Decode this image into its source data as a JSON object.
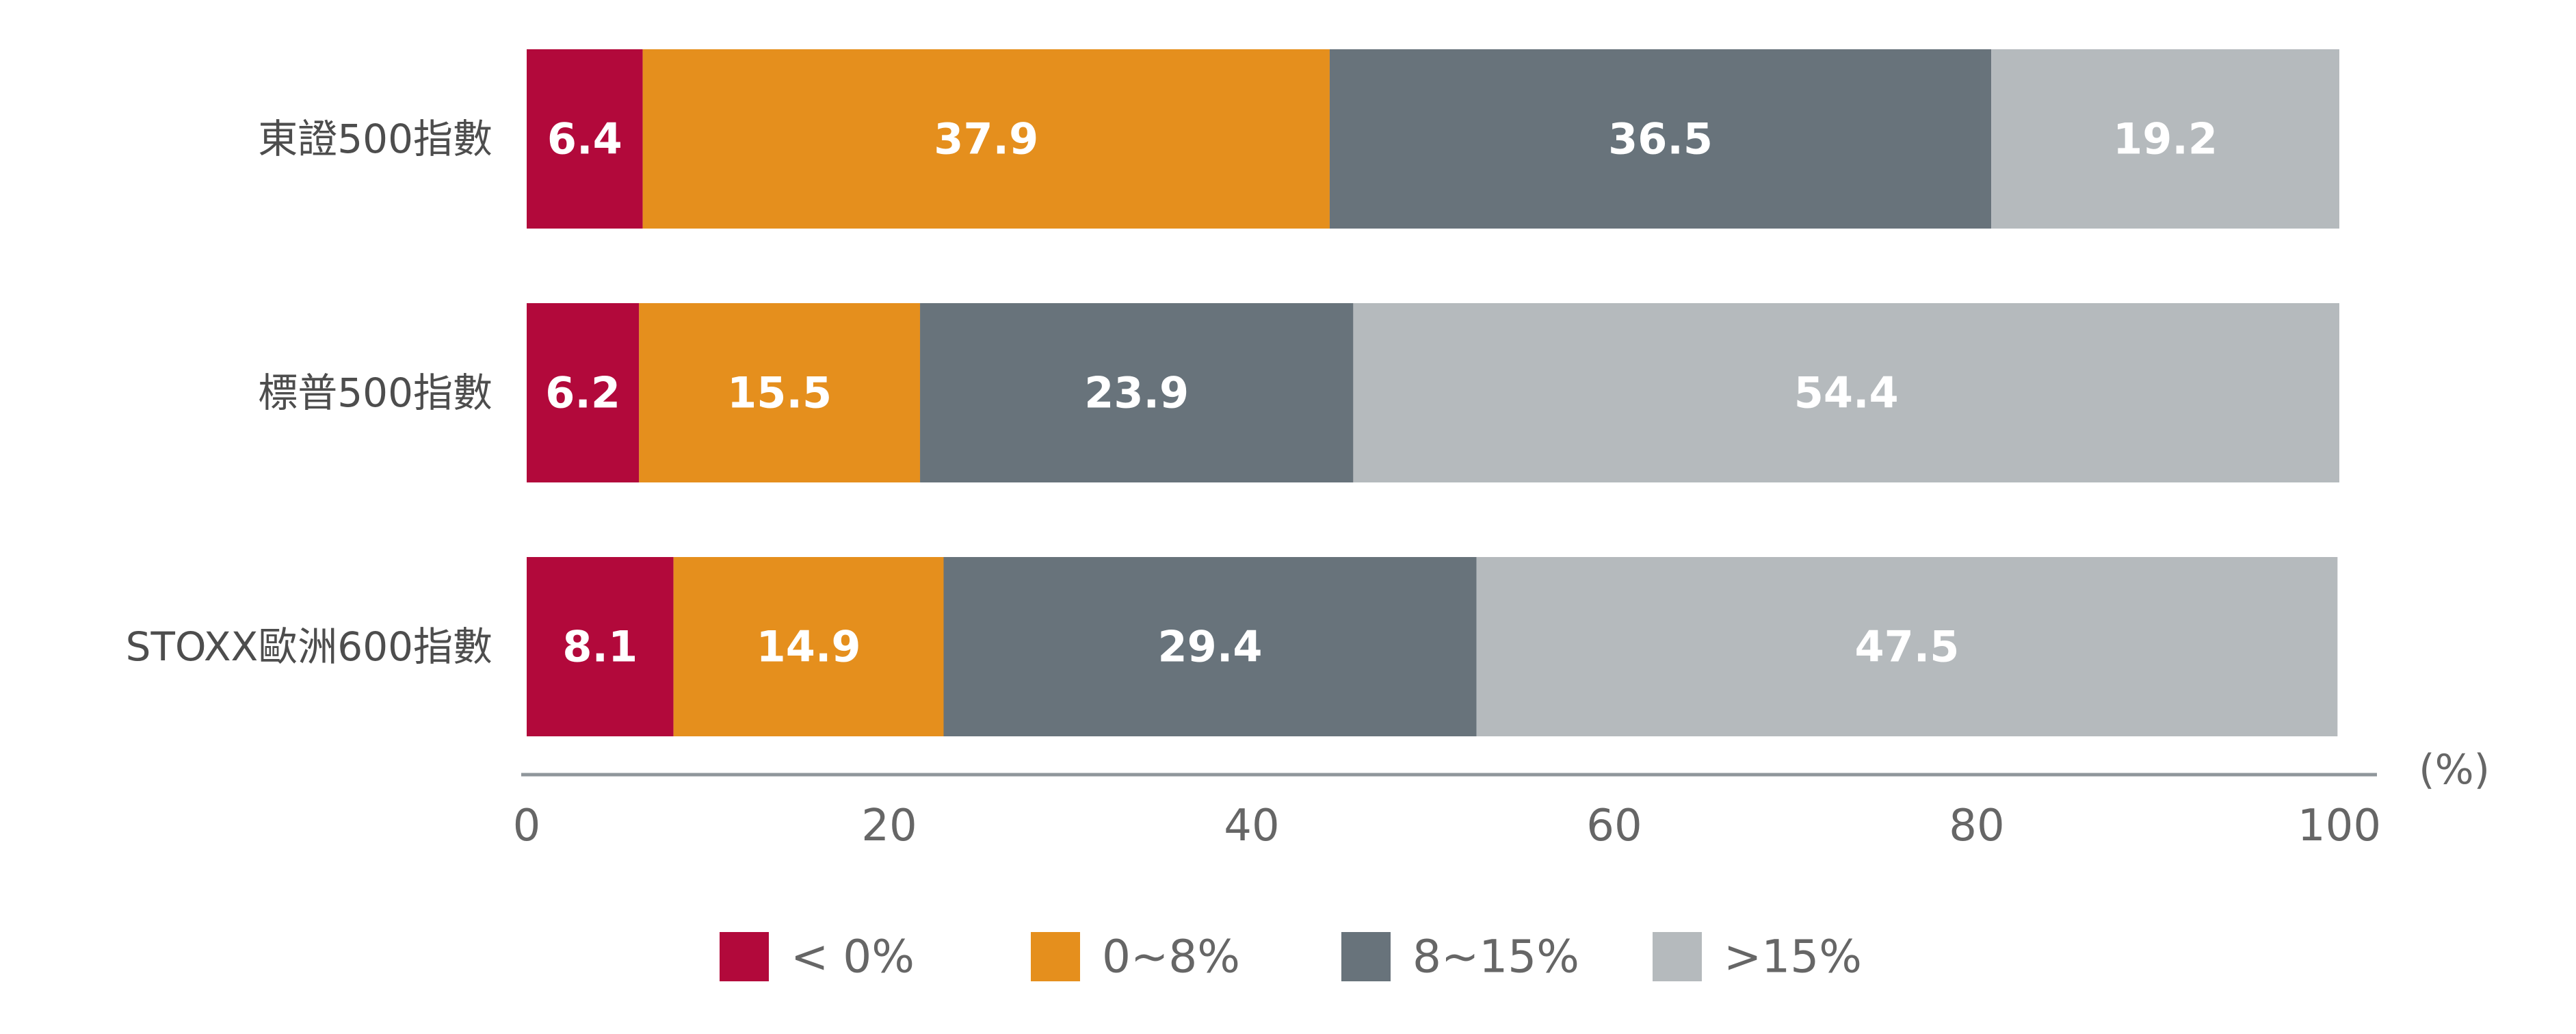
{
  "chart_data": {
    "type": "bar",
    "orientation": "horizontal",
    "stacked": true,
    "categories": [
      "東證500指數",
      "標普500指數",
      "STOXX歐洲600指數"
    ],
    "series": [
      {
        "name": "< 0%",
        "color": "#b2093b",
        "values": [
          6.4,
          6.2,
          8.1
        ]
      },
      {
        "name": "0~8%",
        "color": "#e58f1d",
        "values": [
          37.9,
          15.5,
          14.9
        ]
      },
      {
        "name": "8~15%",
        "color": "#68737b",
        "values": [
          36.5,
          23.9,
          29.4
        ]
      },
      {
        "name": ">15%",
        "color": "#b5babd",
        "values": [
          19.2,
          54.4,
          47.5
        ]
      }
    ],
    "xlim": [
      0,
      100
    ],
    "xticks": [
      0,
      20,
      40,
      60,
      80,
      100
    ],
    "xunit": "(%)",
    "legend_position": "bottom",
    "grid": false
  }
}
